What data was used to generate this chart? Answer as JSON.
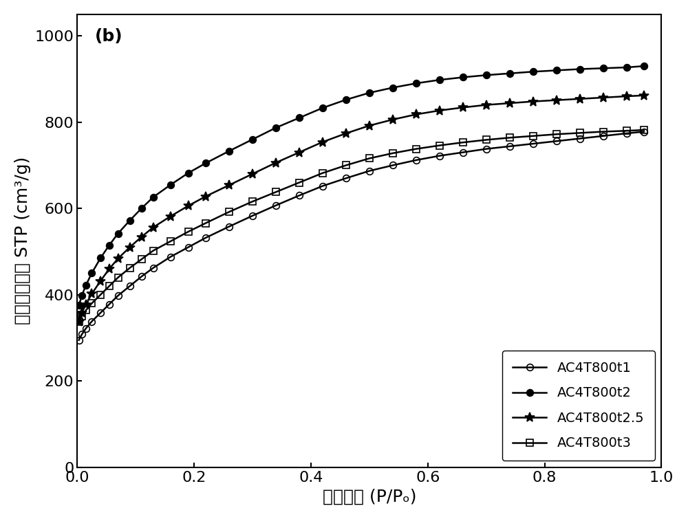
{
  "title_label": "(b)",
  "xlabel": "相对压力 (P/Pₒ)",
  "ylabel": "氮气吸附量＠ STP (cm³/g)",
  "xlim": [
    0.0,
    1.0
  ],
  "ylim": [
    0,
    1050
  ],
  "yticks": [
    0,
    200,
    400,
    600,
    800,
    1000
  ],
  "xticks": [
    0.0,
    0.2,
    0.4,
    0.6,
    0.8,
    1.0
  ],
  "series_order": [
    "AC4T800t1",
    "AC4T800t2",
    "AC4T800t2.5",
    "AC4T800t3"
  ],
  "series": {
    "AC4T800t1": {
      "x": [
        0.003,
        0.008,
        0.015,
        0.025,
        0.04,
        0.055,
        0.07,
        0.09,
        0.11,
        0.13,
        0.16,
        0.19,
        0.22,
        0.26,
        0.3,
        0.34,
        0.38,
        0.42,
        0.46,
        0.5,
        0.54,
        0.58,
        0.62,
        0.66,
        0.7,
        0.74,
        0.78,
        0.82,
        0.86,
        0.9,
        0.94,
        0.97
      ],
      "y": [
        295,
        308,
        322,
        338,
        358,
        378,
        398,
        420,
        442,
        462,
        488,
        510,
        532,
        558,
        583,
        607,
        630,
        652,
        670,
        687,
        700,
        712,
        722,
        730,
        738,
        744,
        750,
        756,
        762,
        768,
        774,
        778
      ],
      "marker": "o",
      "fillstyle": "none",
      "color": "#000000",
      "label": "AC4T800t1",
      "markersize": 7
    },
    "AC4T800t2": {
      "x": [
        0.003,
        0.008,
        0.015,
        0.025,
        0.04,
        0.055,
        0.07,
        0.09,
        0.11,
        0.13,
        0.16,
        0.19,
        0.22,
        0.26,
        0.3,
        0.34,
        0.38,
        0.42,
        0.46,
        0.5,
        0.54,
        0.58,
        0.62,
        0.66,
        0.7,
        0.74,
        0.78,
        0.82,
        0.86,
        0.9,
        0.94,
        0.97
      ],
      "y": [
        375,
        398,
        422,
        450,
        485,
        515,
        542,
        572,
        600,
        626,
        655,
        682,
        705,
        733,
        760,
        787,
        810,
        833,
        852,
        868,
        880,
        890,
        898,
        904,
        909,
        913,
        917,
        920,
        923,
        925,
        927,
        930
      ],
      "marker": "o",
      "fillstyle": "full",
      "color": "#000000",
      "label": "AC4T800t2",
      "markersize": 7
    },
    "AC4T800t2.5": {
      "x": [
        0.003,
        0.008,
        0.015,
        0.025,
        0.04,
        0.055,
        0.07,
        0.09,
        0.11,
        0.13,
        0.16,
        0.19,
        0.22,
        0.26,
        0.3,
        0.34,
        0.38,
        0.42,
        0.46,
        0.5,
        0.54,
        0.58,
        0.62,
        0.66,
        0.7,
        0.74,
        0.78,
        0.82,
        0.86,
        0.9,
        0.94,
        0.97
      ],
      "y": [
        338,
        358,
        378,
        402,
        432,
        460,
        484,
        510,
        534,
        556,
        582,
        606,
        628,
        654,
        680,
        706,
        730,
        754,
        774,
        792,
        806,
        818,
        827,
        834,
        840,
        844,
        848,
        851,
        854,
        857,
        860,
        862
      ],
      "marker": "*",
      "fillstyle": "full",
      "color": "#000000",
      "label": "AC4T800t2.5",
      "markersize": 10
    },
    "AC4T800t3": {
      "x": [
        0.003,
        0.008,
        0.015,
        0.025,
        0.04,
        0.055,
        0.07,
        0.09,
        0.11,
        0.13,
        0.16,
        0.19,
        0.22,
        0.26,
        0.3,
        0.34,
        0.38,
        0.42,
        0.46,
        0.5,
        0.54,
        0.58,
        0.62,
        0.66,
        0.7,
        0.74,
        0.78,
        0.82,
        0.86,
        0.9,
        0.94,
        0.97
      ],
      "y": [
        338,
        350,
        364,
        380,
        400,
        420,
        440,
        462,
        482,
        502,
        524,
        546,
        566,
        592,
        616,
        638,
        660,
        682,
        700,
        716,
        728,
        738,
        746,
        753,
        759,
        764,
        768,
        772,
        775,
        778,
        780,
        782
      ],
      "marker": "s",
      "fillstyle": "none",
      "color": "#000000",
      "label": "AC4T800t3",
      "markersize": 7
    }
  },
  "legend_loc": "lower right",
  "linewidth": 1.8,
  "background_color": "#ffffff",
  "font_size_label": 18,
  "font_size_tick": 16,
  "font_size_legend": 14,
  "font_size_title": 18
}
